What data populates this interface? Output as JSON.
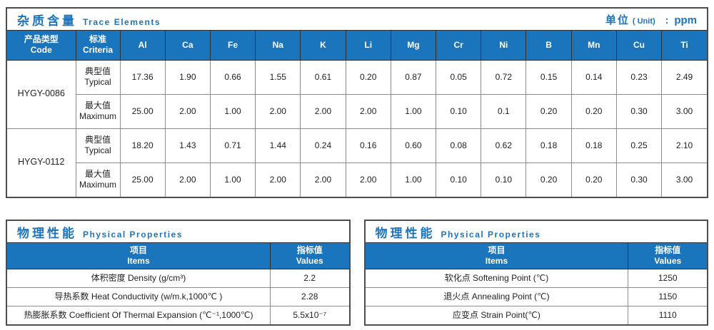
{
  "colors": {
    "accent_blue": "#1b75bc",
    "header_divider": "#2b2f36",
    "grid_line": "#8c8c8c",
    "outer_border": "#4d4d4d",
    "body_text": "#1f1f1f"
  },
  "trace": {
    "title_zh": "杂质含量",
    "title_en": "Trace Elements",
    "unit_zh": "单位",
    "unit_en": "( Unit)",
    "unit_colon": ":",
    "unit_value": "ppm",
    "col_code_zh": "产品类型",
    "col_code_en": "Code",
    "col_criteria_zh": "标准",
    "col_criteria_en": "Criteria",
    "elements": [
      "Al",
      "Ca",
      "Fe",
      "Na",
      "K",
      "Li",
      "Mg",
      "Cr",
      "Ni",
      "B",
      "Mn",
      "Cu",
      "Ti"
    ],
    "rows": [
      {
        "code": "HYGY-0086",
        "criteria_zh": "典型值",
        "criteria_en": "Typical",
        "values": [
          "17.36",
          "1.90",
          "0.66",
          "1.55",
          "0.61",
          "0.20",
          "0.87",
          "0.05",
          "0.72",
          "0.15",
          "0.14",
          "0.23",
          "2.49"
        ]
      },
      {
        "criteria_zh": "最大值",
        "criteria_en": "Maximum",
        "values": [
          "25.00",
          "2.00",
          "1.00",
          "2.00",
          "2.00",
          "2.00",
          "1.00",
          "0.10",
          "0.1",
          "0.20",
          "0.20",
          "0.30",
          "3.00"
        ]
      },
      {
        "code": "HYGY-0112",
        "criteria_zh": "典型值",
        "criteria_en": "Typical",
        "values": [
          "18.20",
          "1.43",
          "0.71",
          "1.44",
          "0.24",
          "0.16",
          "0.60",
          "0.08",
          "0.62",
          "0.18",
          "0.18",
          "0.25",
          "2.10"
        ]
      },
      {
        "criteria_zh": "最大值",
        "criteria_en": "Maximum",
        "values": [
          "25.00",
          "2.00",
          "1.00",
          "2.00",
          "2.00",
          "2.00",
          "1.00",
          "0.10",
          "0.10",
          "0.20",
          "0.20",
          "0.30",
          "3.00"
        ]
      }
    ]
  },
  "physical_left": {
    "title_zh": "物理性能",
    "title_en": "Physical Properties",
    "col_items_zh": "项目",
    "col_items_en": "Items",
    "col_values_zh": "指标值",
    "col_values_en": "Values",
    "rows": [
      {
        "item": "体积密度 Density (g/cm³)",
        "value": "2.2"
      },
      {
        "item": "导热系数 Heat Conductivity (w/m.k,1000℃ )",
        "value": "2.28"
      },
      {
        "item": "热膨胀系数 Coefficient Of Thermal Expansion (℃⁻¹,1000℃)",
        "value": "5.5x10⁻⁷"
      }
    ]
  },
  "physical_right": {
    "title_zh": "物理性能",
    "title_en": "Physical Properties",
    "col_items_zh": "项目",
    "col_items_en": "Items",
    "col_values_zh": "指标值",
    "col_values_en": "Values",
    "rows": [
      {
        "item": "软化点 Softening Point (℃)",
        "value": "1250"
      },
      {
        "item": "退火点 Annealing Point (℃)",
        "value": "1150"
      },
      {
        "item": "应变点 Strain Point(℃)",
        "value": "1110"
      }
    ]
  }
}
